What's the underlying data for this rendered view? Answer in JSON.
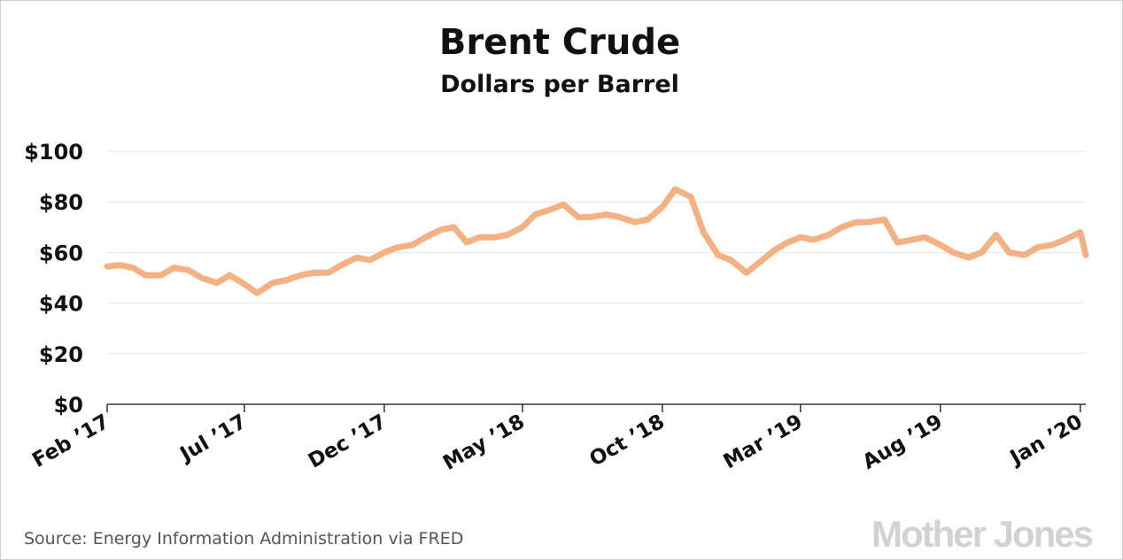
{
  "colors": {
    "line": "#f4b183",
    "grid": "#e6e6e6",
    "axis": "#333333",
    "logo": "#d2d2d2"
  },
  "footer": {
    "source": "Source: Energy Information Administration via FRED",
    "logo": "Mother Jones"
  },
  "chart_data": {
    "type": "line",
    "title": "Brent Crude",
    "subtitle": "Dollars per Barrel",
    "xlabel": "",
    "ylabel": "",
    "ylim": [
      0,
      100
    ],
    "grid": true,
    "legend": "none",
    "yticks": [
      0,
      20,
      40,
      60,
      80,
      100
    ],
    "ytick_labels": [
      "$0",
      "$20",
      "$40",
      "$60",
      "$80",
      "$100"
    ],
    "xlim": [
      "2017-02-01",
      "2020-01-07"
    ],
    "xticks": [
      "2017-02-01",
      "2017-07-01",
      "2017-12-01",
      "2018-05-01",
      "2018-10-01",
      "2019-03-01",
      "2019-08-01",
      "2020-01-01"
    ],
    "xtick_labels": [
      "Feb ’17",
      "Jul ’17",
      "Dec ’17",
      "May ’18",
      "Oct ’18",
      "Mar ’19",
      "Aug ’19",
      "Jan ’20"
    ],
    "series": [
      {
        "x": [
          "2017-02-01",
          "2017-02-15",
          "2017-03-01",
          "2017-03-15",
          "2017-04-01",
          "2017-04-15",
          "2017-05-01",
          "2017-05-15",
          "2017-06-01",
          "2017-06-15",
          "2017-07-01",
          "2017-07-15",
          "2017-08-01",
          "2017-08-15",
          "2017-09-01",
          "2017-09-15",
          "2017-10-01",
          "2017-10-15",
          "2017-11-01",
          "2017-11-15",
          "2017-12-01",
          "2017-12-15",
          "2018-01-01",
          "2018-01-15",
          "2018-02-01",
          "2018-02-15",
          "2018-03-01",
          "2018-03-15",
          "2018-04-01",
          "2018-04-15",
          "2018-05-01",
          "2018-05-15",
          "2018-06-01",
          "2018-06-15",
          "2018-07-01",
          "2018-07-15",
          "2018-08-01",
          "2018-08-15",
          "2018-09-01",
          "2018-09-15",
          "2018-10-01",
          "2018-10-15",
          "2018-11-01",
          "2018-11-15",
          "2018-12-01",
          "2018-12-15",
          "2019-01-01",
          "2019-01-15",
          "2019-02-01",
          "2019-02-15",
          "2019-03-01",
          "2019-03-15",
          "2019-04-01",
          "2019-04-15",
          "2019-05-01",
          "2019-05-15",
          "2019-06-01",
          "2019-06-15",
          "2019-07-01",
          "2019-07-15",
          "2019-08-01",
          "2019-08-15",
          "2019-09-01",
          "2019-09-15",
          "2019-10-01",
          "2019-10-15",
          "2019-11-01",
          "2019-11-15",
          "2019-12-01",
          "2019-12-15",
          "2020-01-01",
          "2020-01-07"
        ],
        "values": [
          54.5,
          55,
          54,
          51,
          51,
          54,
          53,
          50,
          48,
          51,
          47.5,
          44,
          48,
          49,
          51,
          52,
          52,
          55,
          58,
          57,
          60,
          62,
          63,
          66,
          69,
          70,
          64,
          66,
          66,
          67,
          70,
          75,
          77,
          79,
          74,
          74,
          75,
          74,
          72,
          73,
          78,
          85,
          82,
          68,
          59,
          57,
          52,
          56,
          61,
          64,
          66,
          65,
          67,
          70,
          72,
          72,
          73,
          64,
          65,
          66,
          63,
          60,
          58,
          60,
          67,
          60,
          59,
          62,
          63,
          65,
          68,
          59
        ]
      }
    ]
  }
}
